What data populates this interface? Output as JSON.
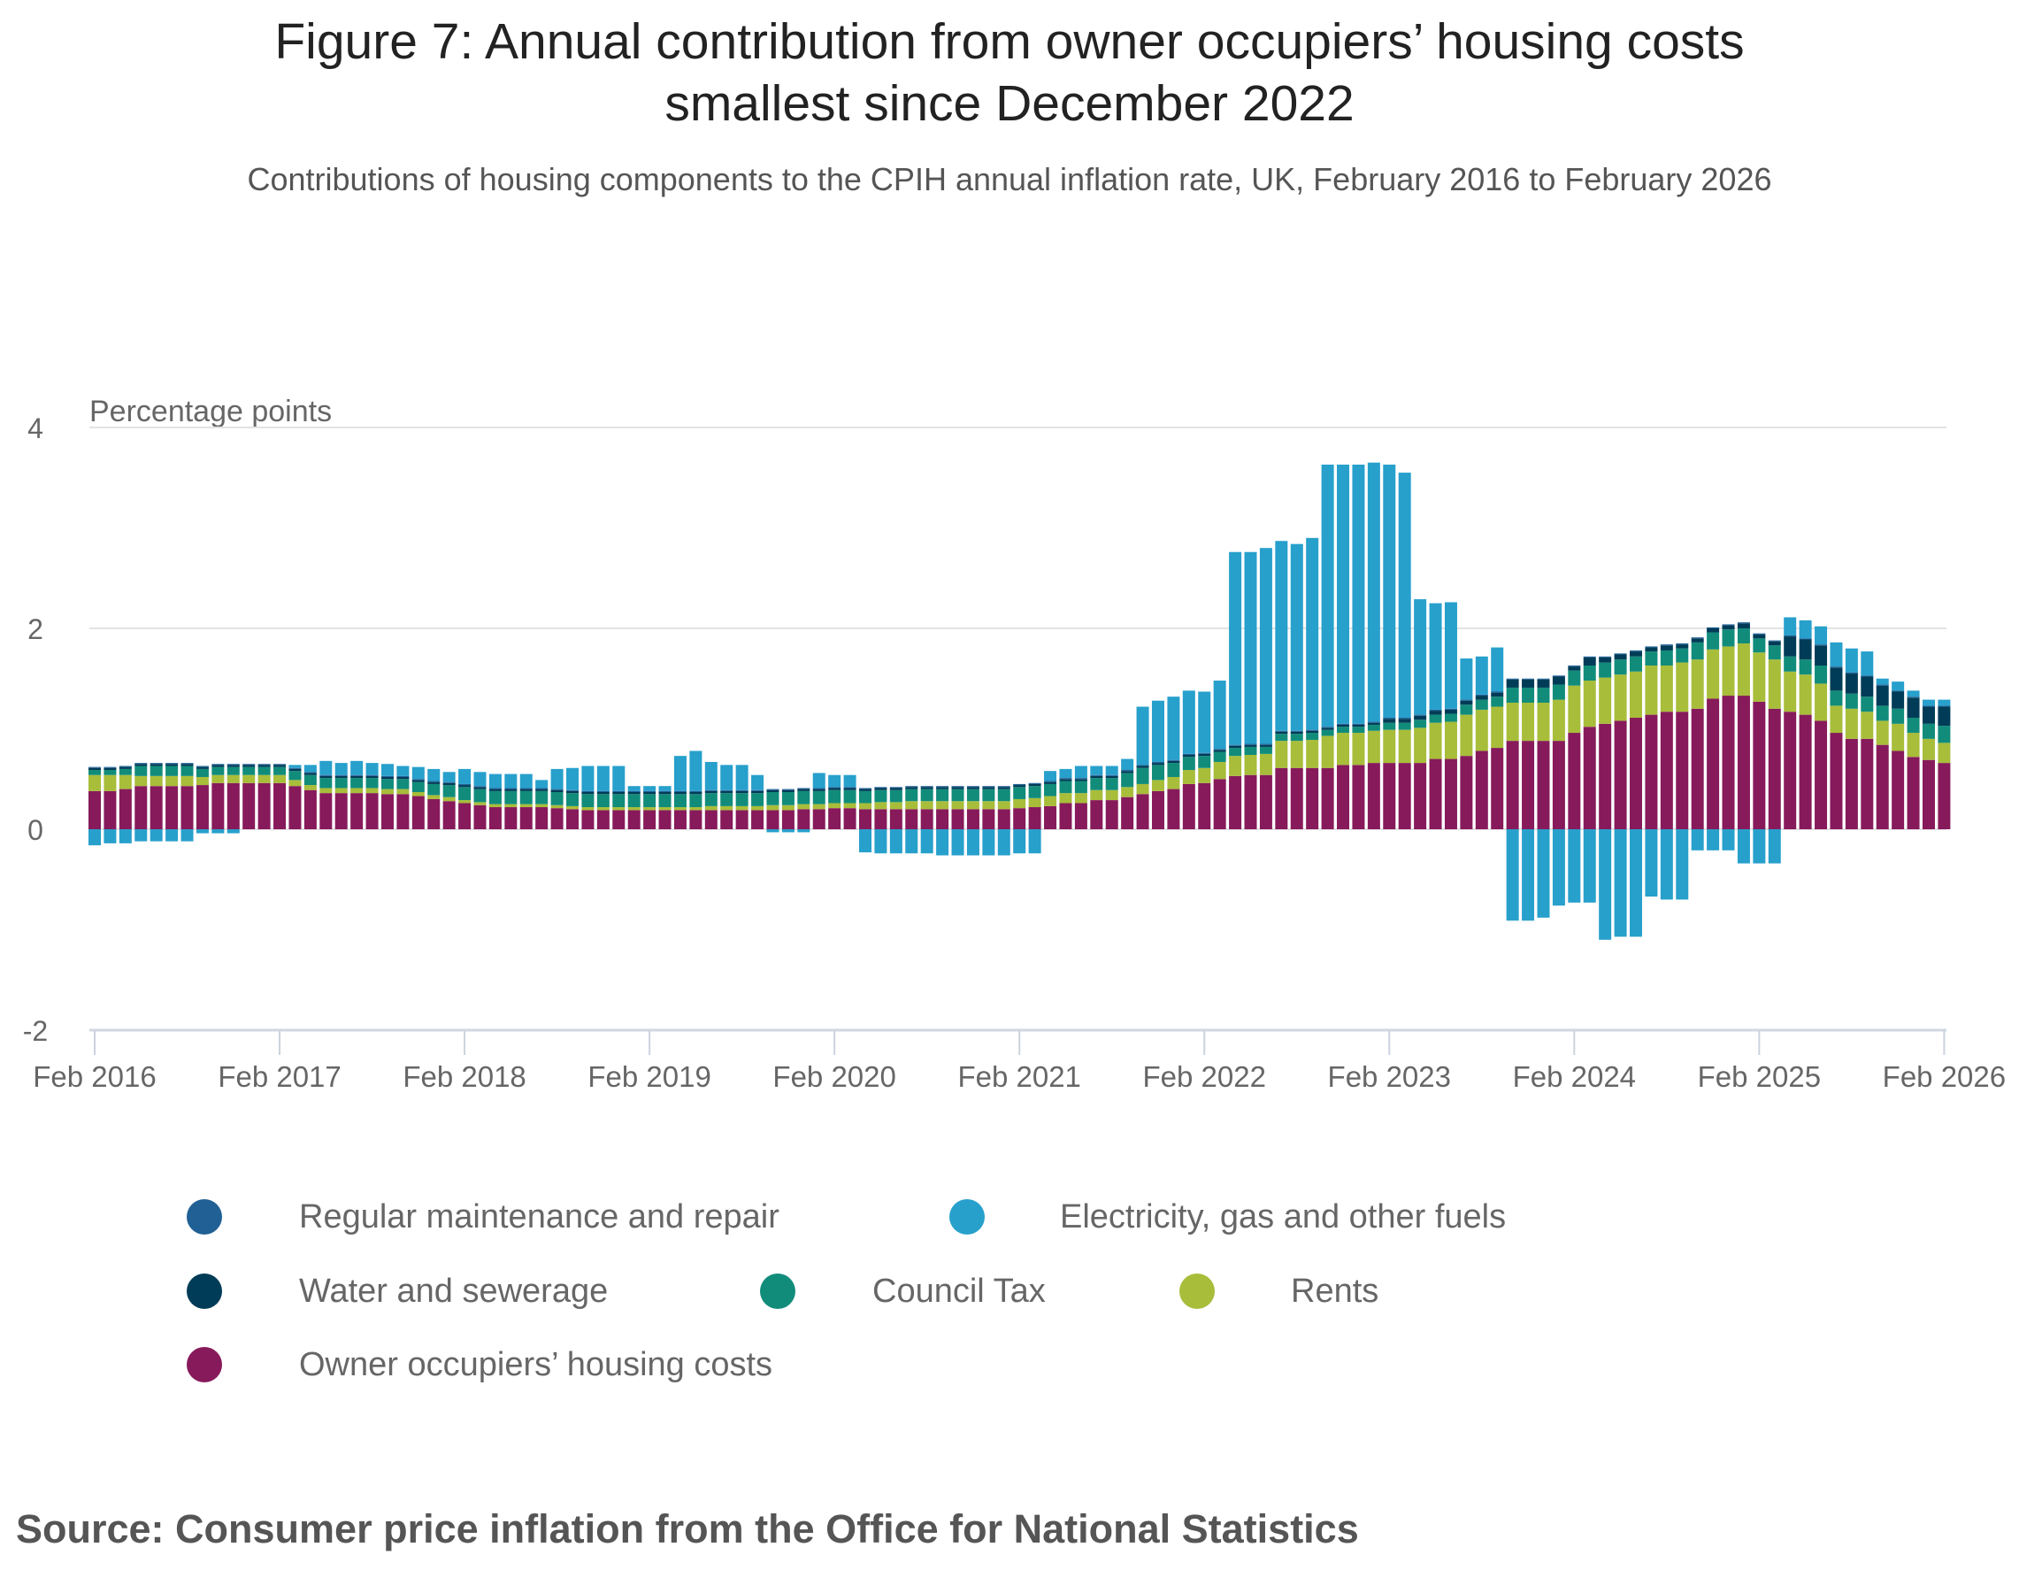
{
  "title_line1": "Figure 7: Annual contribution from owner occupiers’ housing costs",
  "title_line2": "smallest since December 2022",
  "subtitle": "Contributions of housing components to the CPIH annual inflation rate, UK, February 2016 to February 2026",
  "source": "Source: Consumer price inflation from the Office for National Statistics",
  "chart_data": {
    "type": "bar",
    "stacked": true,
    "ylabel": "Percentage points",
    "ylim": [
      -2,
      4
    ],
    "yticks": [
      "4",
      "2",
      "0",
      "-2"
    ],
    "xticks": [
      "Feb 2016",
      "Feb 2017",
      "Feb 2018",
      "Feb 2019",
      "Feb 2020",
      "Feb 2021",
      "Feb 2022",
      "Feb 2023",
      "Feb 2024",
      "Feb 2025",
      "Feb 2026"
    ],
    "x_start": "Feb 2016",
    "x_end": "Feb 2026",
    "frequency": "monthly",
    "grid": true,
    "legend_position": "bottom",
    "series": [
      {
        "name": "Owner occupiers’ housing costs",
        "color": "#871a5b",
        "values": [
          0.38,
          0.38,
          0.4,
          0.43,
          0.43,
          0.43,
          0.43,
          0.44,
          0.46,
          0.46,
          0.46,
          0.46,
          0.46,
          0.43,
          0.39,
          0.36,
          0.36,
          0.36,
          0.36,
          0.35,
          0.35,
          0.33,
          0.3,
          0.28,
          0.26,
          0.24,
          0.22,
          0.22,
          0.22,
          0.22,
          0.21,
          0.2,
          0.19,
          0.19,
          0.19,
          0.19,
          0.19,
          0.19,
          0.19,
          0.19,
          0.19,
          0.19,
          0.19,
          0.19,
          0.19,
          0.19,
          0.2,
          0.2,
          0.21,
          0.21,
          0.2,
          0.2,
          0.2,
          0.2,
          0.2,
          0.2,
          0.2,
          0.2,
          0.2,
          0.2,
          0.21,
          0.22,
          0.23,
          0.26,
          0.26,
          0.29,
          0.29,
          0.32,
          0.35,
          0.38,
          0.4,
          0.45,
          0.46,
          0.5,
          0.53,
          0.54,
          0.54,
          0.61,
          0.61,
          0.61,
          0.61,
          0.64,
          0.64,
          0.66,
          0.66,
          0.66,
          0.66,
          0.7,
          0.7,
          0.73,
          0.78,
          0.81,
          0.88,
          0.88,
          0.88,
          0.88,
          0.96,
          1.02,
          1.05,
          1.08,
          1.11,
          1.14,
          1.17,
          1.17,
          1.2,
          1.3,
          1.33,
          1.33,
          1.27,
          1.2,
          1.17,
          1.14,
          1.08,
          0.96,
          0.9,
          0.9,
          0.84,
          0.78,
          0.72,
          0.69,
          0.66
        ]
      },
      {
        "name": "Rents",
        "color": "#a8bd3a",
        "values": [
          0.16,
          0.16,
          0.14,
          0.1,
          0.1,
          0.1,
          0.1,
          0.08,
          0.08,
          0.08,
          0.08,
          0.08,
          0.08,
          0.06,
          0.05,
          0.05,
          0.05,
          0.05,
          0.05,
          0.05,
          0.05,
          0.04,
          0.04,
          0.04,
          0.03,
          0.03,
          0.03,
          0.03,
          0.03,
          0.03,
          0.03,
          0.03,
          0.03,
          0.03,
          0.03,
          0.03,
          0.03,
          0.03,
          0.03,
          0.03,
          0.04,
          0.04,
          0.04,
          0.04,
          0.05,
          0.05,
          0.05,
          0.05,
          0.05,
          0.05,
          0.06,
          0.07,
          0.07,
          0.08,
          0.08,
          0.08,
          0.08,
          0.08,
          0.08,
          0.08,
          0.09,
          0.09,
          0.1,
          0.1,
          0.1,
          0.1,
          0.1,
          0.1,
          0.1,
          0.11,
          0.12,
          0.14,
          0.15,
          0.17,
          0.2,
          0.2,
          0.21,
          0.27,
          0.27,
          0.28,
          0.32,
          0.32,
          0.32,
          0.32,
          0.33,
          0.33,
          0.35,
          0.36,
          0.37,
          0.41,
          0.41,
          0.41,
          0.38,
          0.38,
          0.38,
          0.41,
          0.47,
          0.46,
          0.46,
          0.46,
          0.46,
          0.49,
          0.46,
          0.49,
          0.49,
          0.49,
          0.49,
          0.52,
          0.49,
          0.49,
          0.4,
          0.4,
          0.37,
          0.27,
          0.3,
          0.27,
          0.24,
          0.27,
          0.24,
          0.21,
          0.2
        ]
      },
      {
        "name": "Council Tax",
        "color": "#118c7b",
        "values": [
          0.05,
          0.05,
          0.06,
          0.1,
          0.1,
          0.1,
          0.1,
          0.08,
          0.08,
          0.08,
          0.08,
          0.08,
          0.08,
          0.09,
          0.1,
          0.1,
          0.1,
          0.1,
          0.1,
          0.1,
          0.1,
          0.1,
          0.11,
          0.12,
          0.13,
          0.13,
          0.13,
          0.13,
          0.13,
          0.13,
          0.13,
          0.13,
          0.13,
          0.13,
          0.13,
          0.13,
          0.13,
          0.13,
          0.13,
          0.13,
          0.13,
          0.13,
          0.13,
          0.13,
          0.13,
          0.13,
          0.13,
          0.13,
          0.13,
          0.13,
          0.12,
          0.12,
          0.12,
          0.12,
          0.12,
          0.12,
          0.12,
          0.12,
          0.12,
          0.12,
          0.12,
          0.12,
          0.12,
          0.12,
          0.12,
          0.12,
          0.12,
          0.14,
          0.16,
          0.15,
          0.14,
          0.13,
          0.12,
          0.1,
          0.08,
          0.08,
          0.07,
          0.07,
          0.07,
          0.07,
          0.06,
          0.06,
          0.06,
          0.06,
          0.07,
          0.07,
          0.08,
          0.08,
          0.08,
          0.1,
          0.1,
          0.1,
          0.15,
          0.15,
          0.15,
          0.15,
          0.15,
          0.15,
          0.15,
          0.15,
          0.15,
          0.14,
          0.15,
          0.14,
          0.17,
          0.17,
          0.17,
          0.15,
          0.14,
          0.14,
          0.15,
          0.15,
          0.18,
          0.15,
          0.15,
          0.15,
          0.15,
          0.15,
          0.15,
          0.15,
          0.17
        ]
      },
      {
        "name": "Water and sewerage",
        "color": "#003c57",
        "values": [
          0.02,
          0.02,
          0.02,
          0.02,
          0.02,
          0.02,
          0.02,
          0.02,
          0.02,
          0.02,
          0.02,
          0.02,
          0.02,
          0.02,
          0.02,
          0.02,
          0.02,
          0.02,
          0.02,
          0.02,
          0.02,
          0.02,
          0.02,
          0.02,
          0.02,
          0.02,
          0.02,
          0.02,
          0.02,
          0.02,
          0.02,
          0.02,
          0.02,
          0.02,
          0.02,
          0.02,
          0.02,
          0.02,
          0.02,
          0.02,
          0.02,
          0.02,
          0.02,
          0.02,
          0.02,
          0.02,
          0.02,
          0.02,
          0.02,
          0.02,
          0.02,
          0.02,
          0.02,
          0.02,
          0.02,
          0.02,
          0.02,
          0.02,
          0.02,
          0.02,
          0.02,
          0.02,
          0.02,
          0.02,
          0.02,
          0.02,
          0.02,
          0.02,
          0.02,
          0.02,
          0.02,
          0.02,
          0.02,
          0.02,
          0.02,
          0.02,
          0.02,
          0.02,
          0.02,
          0.02,
          0.02,
          0.02,
          0.02,
          0.02,
          0.04,
          0.04,
          0.04,
          0.04,
          0.04,
          0.04,
          0.04,
          0.04,
          0.08,
          0.08,
          0.08,
          0.08,
          0.04,
          0.08,
          0.05,
          0.05,
          0.05,
          0.04,
          0.05,
          0.04,
          0.04,
          0.04,
          0.04,
          0.05,
          0.04,
          0.04,
          0.2,
          0.2,
          0.2,
          0.23,
          0.2,
          0.2,
          0.2,
          0.17,
          0.2,
          0.17,
          0.19
        ]
      },
      {
        "name": "Regular maintenance and repair",
        "color": "#206095",
        "values": [
          0.01,
          0.01,
          0.01,
          0.01,
          0.01,
          0.01,
          0.01,
          0.01,
          0.01,
          0.01,
          0.01,
          0.01,
          0.01,
          0.01,
          0.01,
          0.01,
          0.01,
          0.01,
          0.01,
          0.01,
          0.01,
          0.01,
          0.01,
          0.01,
          0.01,
          0.01,
          0.01,
          0.01,
          0.01,
          0.01,
          0.01,
          0.01,
          0.01,
          0.01,
          0.01,
          0.01,
          0.01,
          0.01,
          0.01,
          0.01,
          0.01,
          0.01,
          0.01,
          0.01,
          0.01,
          0.01,
          0.01,
          0.01,
          0.01,
          0.01,
          0.01,
          0.01,
          0.01,
          0.01,
          0.01,
          0.01,
          0.01,
          0.01,
          0.01,
          0.01,
          0.01,
          0.01,
          0.01,
          0.01,
          0.01,
          0.01,
          0.01,
          0.01,
          0.01,
          0.01,
          0.01,
          0.01,
          0.01,
          0.01,
          0.01,
          0.01,
          0.01,
          0.01,
          0.01,
          0.01,
          0.01,
          0.01,
          0.01,
          0.01,
          0.01,
          0.01,
          0.01,
          0.01,
          0.01,
          0.01,
          0.01,
          0.01,
          0.01,
          0.01,
          0.01,
          0.01,
          0.01,
          0.01,
          0.01,
          0.01,
          0.01,
          0.01,
          0.01,
          0.01,
          0.01,
          0.01,
          0.01,
          0.01,
          0.01,
          0.01,
          0.01,
          0.01,
          0.01,
          0.01,
          0.01,
          0.01,
          0.01,
          0.01,
          0.01,
          0.01,
          0.01
        ]
      },
      {
        "name": "Electricity, gas and other fuels",
        "color": "#27a0cc",
        "values": [
          -0.16,
          -0.14,
          -0.14,
          -0.12,
          -0.12,
          -0.12,
          -0.12,
          -0.04,
          -0.04,
          -0.04,
          0.0,
          0.0,
          0.0,
          0.03,
          0.07,
          0.14,
          0.12,
          0.14,
          0.12,
          0.12,
          0.1,
          0.12,
          0.12,
          0.1,
          0.15,
          0.14,
          0.14,
          0.14,
          0.14,
          0.08,
          0.2,
          0.22,
          0.25,
          0.25,
          0.25,
          0.05,
          0.05,
          0.05,
          0.35,
          0.4,
          0.28,
          0.25,
          0.25,
          0.15,
          -0.03,
          -0.03,
          -0.03,
          0.15,
          0.12,
          0.12,
          -0.23,
          -0.24,
          -0.24,
          -0.24,
          -0.24,
          -0.26,
          -0.26,
          -0.26,
          -0.26,
          -0.26,
          -0.24,
          -0.24,
          0.1,
          0.09,
          0.12,
          0.09,
          0.09,
          0.11,
          0.58,
          0.61,
          0.63,
          0.63,
          0.61,
          0.68,
          1.92,
          1.91,
          1.95,
          1.89,
          1.86,
          1.91,
          2.61,
          2.58,
          2.58,
          2.58,
          2.52,
          2.44,
          1.15,
          1.06,
          1.06,
          0.41,
          0.38,
          0.44,
          -0.91,
          -0.91,
          -0.88,
          -0.76,
          -0.73,
          -0.73,
          -1.1,
          -1.07,
          -1.07,
          -0.67,
          -0.7,
          -0.7,
          -0.21,
          -0.21,
          -0.21,
          -0.34,
          -0.34,
          -0.34,
          0.18,
          0.18,
          0.18,
          0.24,
          0.24,
          0.24,
          0.06,
          0.09,
          0.06,
          0.06,
          0.06
        ]
      }
    ]
  },
  "legend": [
    {
      "label": "Regular maintenance and repair",
      "color": "#206095"
    },
    {
      "label": "Electricity, gas and other fuels",
      "color": "#27a0cc"
    },
    {
      "label": "Water and sewerage",
      "color": "#003c57"
    },
    {
      "label": "Council Tax",
      "color": "#118c7b"
    },
    {
      "label": "Rents",
      "color": "#a8bd3a"
    },
    {
      "label": "Owner occupiers’ housing costs",
      "color": "#871a5b"
    }
  ]
}
